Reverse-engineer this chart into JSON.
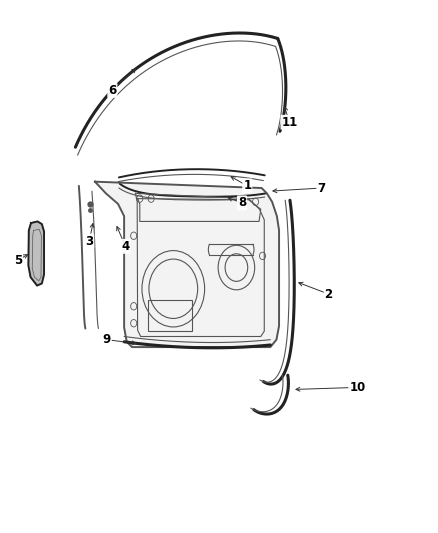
{
  "background_color": "#ffffff",
  "line_color": "#555555",
  "dark_color": "#222222",
  "label_color": "#000000",
  "figsize": [
    4.38,
    5.33
  ],
  "dpi": 100,
  "lw_thin": 0.8,
  "lw_med": 1.4,
  "lw_thick": 2.2
}
